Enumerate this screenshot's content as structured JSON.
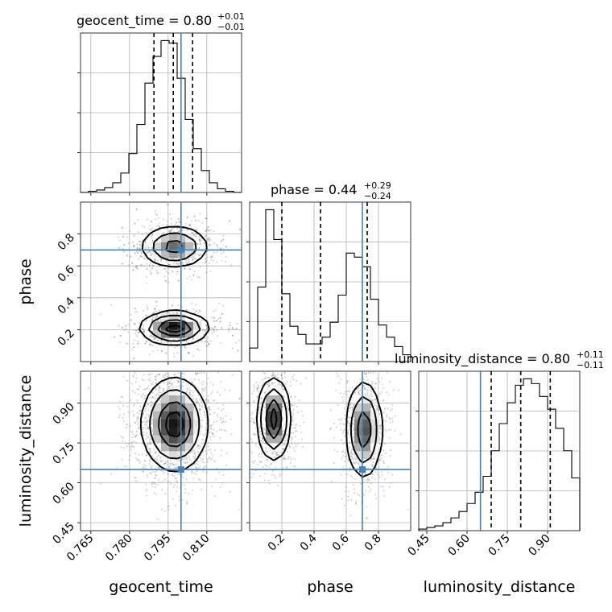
{
  "chart_data": {
    "type": "corner",
    "params": [
      {
        "key": "geocent_time",
        "label": "geocent_time",
        "range": [
          0.761,
          0.8235
        ],
        "ticks": [
          0.765,
          0.78,
          0.795,
          0.81
        ],
        "tick_labels": [
          "0.765",
          "0.780",
          "0.795",
          "0.810"
        ],
        "truth": 0.8,
        "quantiles": [
          0.7895,
          0.797,
          0.8045
        ],
        "title_main": "geocent_time = 0.80",
        "title_plus": "+0.01",
        "title_minus": "−0.01",
        "hist_edges": [
          0.761,
          0.8235
        ],
        "hist": [
          0,
          1,
          2,
          4,
          8,
          16,
          32,
          56,
          90,
          112,
          125,
          123,
          94,
          60,
          36,
          18,
          8,
          3,
          1,
          0
        ]
      },
      {
        "key": "phase",
        "label": "phase",
        "range": [
          0.0,
          1.0
        ],
        "ticks": [
          0.2,
          0.4,
          0.6,
          0.8
        ],
        "tick_labels": [
          "0.2",
          "0.4",
          "0.6",
          "0.8"
        ],
        "truth": 0.7,
        "quantiles": [
          0.2,
          0.44,
          0.73
        ],
        "title_main": "phase = 0.44",
        "title_plus": "+0.29",
        "title_minus": "−0.24",
        "hist_edges": [
          0.0,
          1.0
        ],
        "hist": [
          10,
          55,
          112,
          90,
          50,
          26,
          20,
          13,
          13,
          18,
          29,
          49,
          80,
          77,
          70,
          46,
          27,
          18,
          11,
          5
        ]
      },
      {
        "key": "luminosity_distance",
        "label": "luminosity_distance",
        "range": [
          0.42,
          1.02
        ],
        "ticks": [
          0.45,
          0.6,
          0.75,
          0.9
        ],
        "tick_labels": [
          "0.45",
          "0.60",
          "0.75",
          "0.90"
        ],
        "truth": 0.65,
        "quantiles": [
          0.69,
          0.8,
          0.91
        ],
        "title_main": "luminosity_distance = 0.80",
        "title_plus": "+0.11",
        "title_minus": "−0.11",
        "hist_edges": [
          0.42,
          1.02
        ],
        "hist": [
          1,
          2,
          3,
          5,
          8,
          12,
          17,
          24,
          34,
          50,
          67,
          80,
          91,
          95,
          92,
          84,
          76,
          64,
          50,
          33
        ]
      }
    ],
    "grid": true
  }
}
